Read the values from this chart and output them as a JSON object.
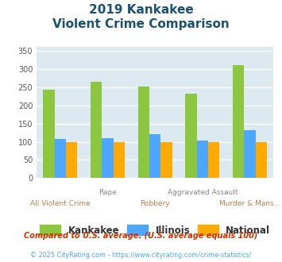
{
  "title_line1": "2019 Kankakee",
  "title_line2": "Violent Crime Comparison",
  "categories": [
    "All Violent Crime",
    "Rape",
    "Robbery",
    "Aggravated Assault",
    "Murder & Mans..."
  ],
  "kankakee": [
    243,
    264,
    252,
    232,
    311
  ],
  "illinois": [
    107,
    110,
    121,
    103,
    132
  ],
  "national": [
    100,
    100,
    100,
    100,
    100
  ],
  "color_kankakee": "#8dc63f",
  "color_illinois": "#4da6ff",
  "color_national": "#ffaa00",
  "ylim": [
    0,
    360
  ],
  "yticks": [
    0,
    50,
    100,
    150,
    200,
    250,
    300,
    350
  ],
  "background_color": "#dce9f0",
  "grid_color": "#ffffff",
  "title_color": "#1a5276",
  "xlabel_color_top": "#888888",
  "xlabel_color_bot": "#c08050",
  "legend_labels": [
    "Kankakee",
    "Illinois",
    "National"
  ],
  "footnote1": "Compared to U.S. average. (U.S. average equals 100)",
  "footnote2": "© 2025 CityRating.com - https://www.cityrating.com/crime-statistics/",
  "footnote1_color": "#cc3300",
  "footnote2_color": "#4da6ff"
}
